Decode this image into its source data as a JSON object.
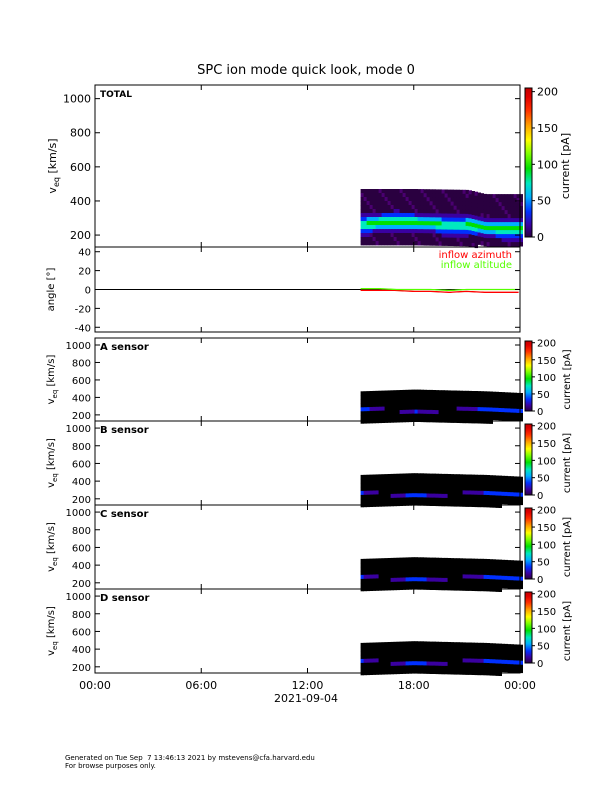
{
  "chart_data": {
    "title": "SPC ion mode quick look, mode 0",
    "x_axis": {
      "tick_labels": [
        "00:00",
        "06:00",
        "12:00",
        "18:00",
        "00:00"
      ],
      "range_hours": [
        0,
        24
      ],
      "tick_hours": [
        0,
        6,
        12,
        18,
        24
      ],
      "date_label": "2021-09-04"
    },
    "data_start_hour": 15.0,
    "panels": [
      {
        "id": "total",
        "type": "heatmap",
        "label": "TOTAL",
        "ylabel": "v_eq [km/s]",
        "ylabel_main": "v",
        "ylabel_sub": "eq",
        "ylabel_unit": " [km/s]",
        "ylim": [
          130,
          1080
        ],
        "yticks": [
          200,
          400,
          600,
          800,
          1000
        ],
        "speed_trace": {
          "hours": [
            15,
            16,
            17,
            18,
            19,
            20,
            21,
            22,
            23,
            24
          ],
          "v": [
            270,
            285,
            290,
            285,
            280,
            265,
            270,
            255,
            245,
            245
          ]
        },
        "band_top_v": {
          "hours": [
            15,
            18,
            21,
            22,
            24
          ],
          "v": [
            470,
            470,
            465,
            440,
            440
          ]
        },
        "colorbar": {
          "label": "current [pA]",
          "range": [
            0,
            205
          ],
          "ticks": [
            0,
            50,
            100,
            150,
            200
          ]
        }
      },
      {
        "id": "angle",
        "type": "line",
        "ylabel": "angle [°]",
        "ylim": [
          -45,
          45
        ],
        "yticks": [
          -40,
          -20,
          0,
          20,
          40
        ],
        "series": [
          {
            "name": "inflow azimuth",
            "color": "#ff0000",
            "x": [
              15,
              16,
              17,
              18,
              19,
              20,
              21,
              22,
              23,
              24
            ],
            "y": [
              -1,
              -1,
              -1,
              -2,
              -2,
              -3,
              -2,
              -3,
              -3,
              -3
            ]
          },
          {
            "name": "inflow altitude",
            "color": "#55ff00",
            "x": [
              15,
              16,
              17,
              18,
              19,
              20,
              21,
              22,
              23,
              24
            ],
            "y": [
              1,
              1,
              0,
              0,
              0,
              -1,
              0,
              0,
              0,
              0
            ]
          }
        ]
      },
      {
        "id": "a",
        "type": "heatmap",
        "label": "A sensor",
        "ylabel": "v_eq [km/s]",
        "ylabel_main": "v",
        "ylabel_sub": "eq",
        "ylabel_unit": " [km/s]",
        "ylim": [
          130,
          1080
        ],
        "yticks": [
          200,
          400,
          600,
          800,
          1000
        ],
        "colorbar": {
          "label": "current [pA]",
          "range": [
            0,
            205
          ],
          "ticks": [
            0,
            50,
            100,
            150,
            200
          ]
        }
      },
      {
        "id": "b",
        "type": "heatmap",
        "label": "B sensor",
        "ylabel": "v_eq [km/s]",
        "ylabel_main": "v",
        "ylabel_sub": "eq",
        "ylabel_unit": " [km/s]",
        "ylim": [
          130,
          1080
        ],
        "yticks": [
          200,
          400,
          600,
          800,
          1000
        ],
        "colorbar": {
          "label": "current [pA]",
          "range": [
            0,
            205
          ],
          "ticks": [
            0,
            50,
            100,
            150,
            200
          ]
        }
      },
      {
        "id": "c",
        "type": "heatmap",
        "label": "C sensor",
        "ylabel": "v_eq [km/s]",
        "ylabel_main": "v",
        "ylabel_sub": "eq",
        "ylabel_unit": " [km/s]",
        "ylim": [
          130,
          1080
        ],
        "yticks": [
          200,
          400,
          600,
          800,
          1000
        ],
        "colorbar": {
          "label": "current [pA]",
          "range": [
            0,
            205
          ],
          "ticks": [
            0,
            50,
            100,
            150,
            200
          ]
        }
      },
      {
        "id": "d",
        "type": "heatmap",
        "label": "D sensor",
        "ylabel": "v_eq [km/s]",
        "ylabel_main": "v",
        "ylabel_sub": "eq",
        "ylabel_unit": " [km/s]",
        "ylim": [
          130,
          1080
        ],
        "yticks": [
          200,
          400,
          600,
          800,
          1000
        ],
        "colorbar": {
          "label": "current [pA]",
          "range": [
            0,
            205
          ],
          "ticks": [
            0,
            50,
            100,
            150,
            200
          ]
        }
      }
    ]
  },
  "footer": {
    "line1": "Generated on Tue Sep  7 13:46:13 2021 by mstevens@cfa.harvard.edu",
    "line2": "For browse purposes only."
  }
}
